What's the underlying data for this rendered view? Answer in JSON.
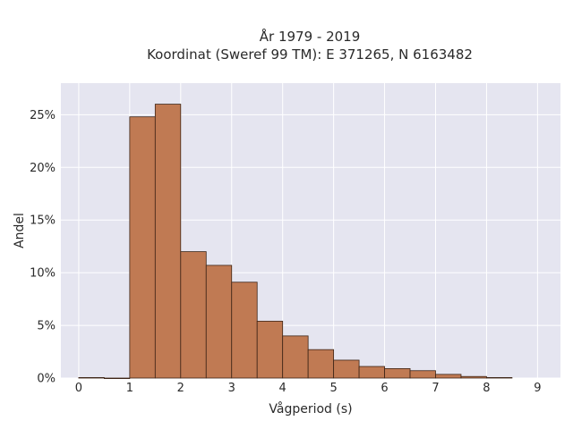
{
  "chart_data": {
    "type": "bar",
    "title": [
      "År 1979 - 2019",
      "Koordinat (Sweref 99 TM): E 371265, N 6163482"
    ],
    "xlabel": "Vågperiod (s)",
    "ylabel": "Andel",
    "xlim": [
      -0.35,
      9.45
    ],
    "ylim": [
      0,
      0.28
    ],
    "xticks": [
      0,
      1,
      2,
      3,
      4,
      5,
      6,
      7,
      8,
      9
    ],
    "yticks": [
      0,
      0.05,
      0.1,
      0.15,
      0.2,
      0.25
    ],
    "ytick_labels": [
      "0%",
      "5%",
      "10%",
      "15%",
      "20%",
      "25%"
    ],
    "bin_width": 0.5,
    "bin_starts": [
      0,
      0.5,
      1.0,
      1.5,
      2.0,
      2.5,
      3.0,
      3.5,
      4.0,
      4.5,
      5.0,
      5.5,
      6.0,
      6.5,
      7.0,
      7.5,
      8.0
    ],
    "values": [
      0.0005,
      0,
      0.248,
      0.26,
      0.12,
      0.107,
      0.091,
      0.054,
      0.04,
      0.027,
      0.017,
      0.011,
      0.009,
      0.007,
      0.0035,
      0.0015,
      0.0005
    ],
    "bar_color": "#c07a53",
    "bar_edge_color": "#3d2416",
    "plot_background": "#e5e5f0",
    "grid": true,
    "grid_color": "#ffffff"
  }
}
